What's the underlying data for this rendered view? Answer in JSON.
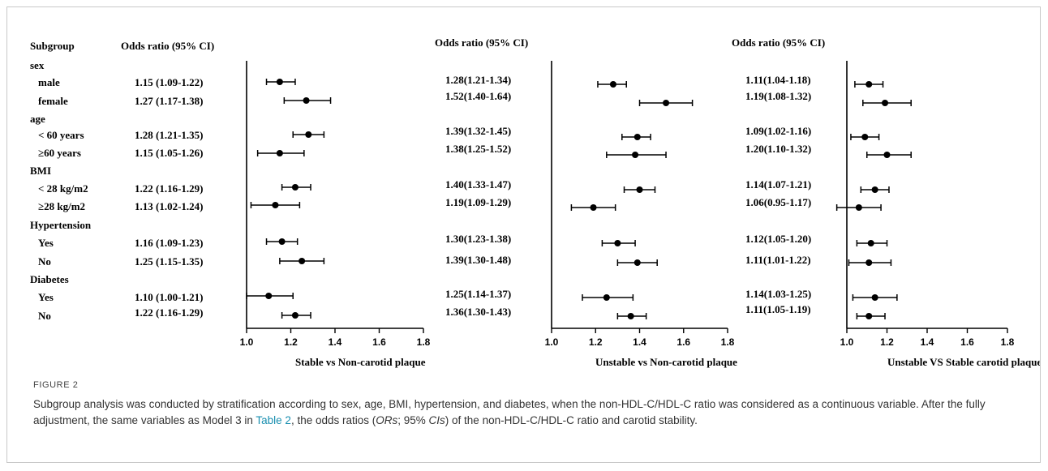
{
  "figure": {
    "label": "FIGURE 2",
    "caption_part1": "Subgroup analysis was conducted by stratification according to sex, age, BMI, hypertension, and diabetes, when the non-HDL-C/HDL-C ratio was considered as a continuous variable. After the fully adjustment, the same variables as Model 3 in ",
    "caption_link": "Table 2",
    "caption_part2": ", the odds ratios (",
    "caption_ors": "ORs",
    "caption_part3": "; 95% ",
    "caption_cis": "CIs",
    "caption_part4": ") of the non-HDL-C/HDL-C ratio and carotid stability."
  },
  "colors": {
    "ink": "#000000",
    "frame": "#c8c8c8",
    "link": "#1a8fb0"
  },
  "chart_data": {
    "type": "forest",
    "subgroup_header": "Subgroup",
    "rows": [
      {
        "label": "sex",
        "is_group": true
      },
      {
        "label": "male",
        "is_group": false
      },
      {
        "label": "female",
        "is_group": false
      },
      {
        "label": "age",
        "is_group": true
      },
      {
        "label": "< 60 years",
        "is_group": false
      },
      {
        "label": "≥60 years",
        "is_group": false
      },
      {
        "label": "BMI",
        "is_group": true
      },
      {
        "label": "< 28 kg/m2",
        "is_group": false
      },
      {
        "label": "≥28 kg/m2",
        "is_group": false
      },
      {
        "label": "Hypertension",
        "is_group": true
      },
      {
        "label": "Yes",
        "is_group": false
      },
      {
        "label": "No",
        "is_group": false
      },
      {
        "label": "Diabetes",
        "is_group": true
      },
      {
        "label": "Yes",
        "is_group": false
      },
      {
        "label": "No",
        "is_group": false
      }
    ],
    "panels": [
      {
        "col_header": "Odds ratio (95% CI)",
        "xlabel": "Stable vs Non-carotid plaque",
        "xlim": [
          1.0,
          1.8
        ],
        "ticks": [
          "1.0",
          "1.2",
          "1.4",
          "1.6",
          "1.8"
        ],
        "estimates": [
          {
            "text": "1.15 (1.09-1.22)",
            "or": 1.15,
            "lo": 1.09,
            "hi": 1.22
          },
          {
            "text": "1.27 (1.17-1.38)",
            "or": 1.27,
            "lo": 1.17,
            "hi": 1.38
          },
          {
            "text": "1.28 (1.21-1.35)",
            "or": 1.28,
            "lo": 1.21,
            "hi": 1.35
          },
          {
            "text": "1.15 (1.05-1.26)",
            "or": 1.15,
            "lo": 1.05,
            "hi": 1.26
          },
          {
            "text": "1.22 (1.16-1.29)",
            "or": 1.22,
            "lo": 1.16,
            "hi": 1.29
          },
          {
            "text": "1.13 (1.02-1.24)",
            "or": 1.13,
            "lo": 1.02,
            "hi": 1.24
          },
          {
            "text": "1.16 (1.09-1.23)",
            "or": 1.16,
            "lo": 1.09,
            "hi": 1.23
          },
          {
            "text": "1.25 (1.15-1.35)",
            "or": 1.25,
            "lo": 1.15,
            "hi": 1.35
          },
          {
            "text": "1.10 (1.00-1.21)",
            "or": 1.1,
            "lo": 1.0,
            "hi": 1.21
          },
          {
            "text": "1.22 (1.16-1.29)",
            "or": 1.22,
            "lo": 1.16,
            "hi": 1.29
          }
        ]
      },
      {
        "col_header": "Odds ratio (95% CI)",
        "xlabel": "Unstable vs Non-carotid plaque",
        "xlim": [
          1.0,
          1.8
        ],
        "ticks": [
          "1.0",
          "1.2",
          "1.4",
          "1.6",
          "1.8"
        ],
        "estimates": [
          {
            "text": "1.28(1.21-1.34)",
            "or": 1.28,
            "lo": 1.21,
            "hi": 1.34
          },
          {
            "text": "1.52(1.40-1.64)",
            "or": 1.52,
            "lo": 1.4,
            "hi": 1.64
          },
          {
            "text": "1.39(1.32-1.45)",
            "or": 1.39,
            "lo": 1.32,
            "hi": 1.45
          },
          {
            "text": "1.38(1.25-1.52)",
            "or": 1.38,
            "lo": 1.25,
            "hi": 1.52
          },
          {
            "text": "1.40(1.33-1.47)",
            "or": 1.4,
            "lo": 1.33,
            "hi": 1.47
          },
          {
            "text": "1.19(1.09-1.29)",
            "or": 1.19,
            "lo": 1.09,
            "hi": 1.29
          },
          {
            "text": "1.30(1.23-1.38)",
            "or": 1.3,
            "lo": 1.23,
            "hi": 1.38
          },
          {
            "text": "1.39(1.30-1.48)",
            "or": 1.39,
            "lo": 1.3,
            "hi": 1.48
          },
          {
            "text": "1.25(1.14-1.37)",
            "or": 1.25,
            "lo": 1.14,
            "hi": 1.37
          },
          {
            "text": "1.36(1.30-1.43)",
            "or": 1.36,
            "lo": 1.3,
            "hi": 1.43
          }
        ]
      },
      {
        "col_header": "Odds ratio (95% CI)",
        "xlabel": "Unstable VS Stable carotid plaque",
        "xlim": [
          1.0,
          1.8
        ],
        "ticks": [
          "1.0",
          "1.2",
          "1.4",
          "1.6",
          "1.8"
        ],
        "estimates": [
          {
            "text": "1.11(1.04-1.18)",
            "or": 1.11,
            "lo": 1.04,
            "hi": 1.18
          },
          {
            "text": "1.19(1.08-1.32)",
            "or": 1.19,
            "lo": 1.08,
            "hi": 1.32
          },
          {
            "text": "1.09(1.02-1.16)",
            "or": 1.09,
            "lo": 1.02,
            "hi": 1.16
          },
          {
            "text": "1.20(1.10-1.32)",
            "or": 1.2,
            "lo": 1.1,
            "hi": 1.32
          },
          {
            "text": "1.14(1.07-1.21)",
            "or": 1.14,
            "lo": 1.07,
            "hi": 1.21
          },
          {
            "text": "1.06(0.95-1.17)",
            "or": 1.06,
            "lo": 0.95,
            "hi": 1.17
          },
          {
            "text": "1.12(1.05-1.20)",
            "or": 1.12,
            "lo": 1.05,
            "hi": 1.2
          },
          {
            "text": "1.11(1.01-1.22)",
            "or": 1.11,
            "lo": 1.01,
            "hi": 1.22
          },
          {
            "text": "1.14(1.03-1.25)",
            "or": 1.14,
            "lo": 1.03,
            "hi": 1.25
          },
          {
            "text": "1.11(1.05-1.19)",
            "or": 1.11,
            "lo": 1.05,
            "hi": 1.19
          }
        ]
      }
    ]
  }
}
